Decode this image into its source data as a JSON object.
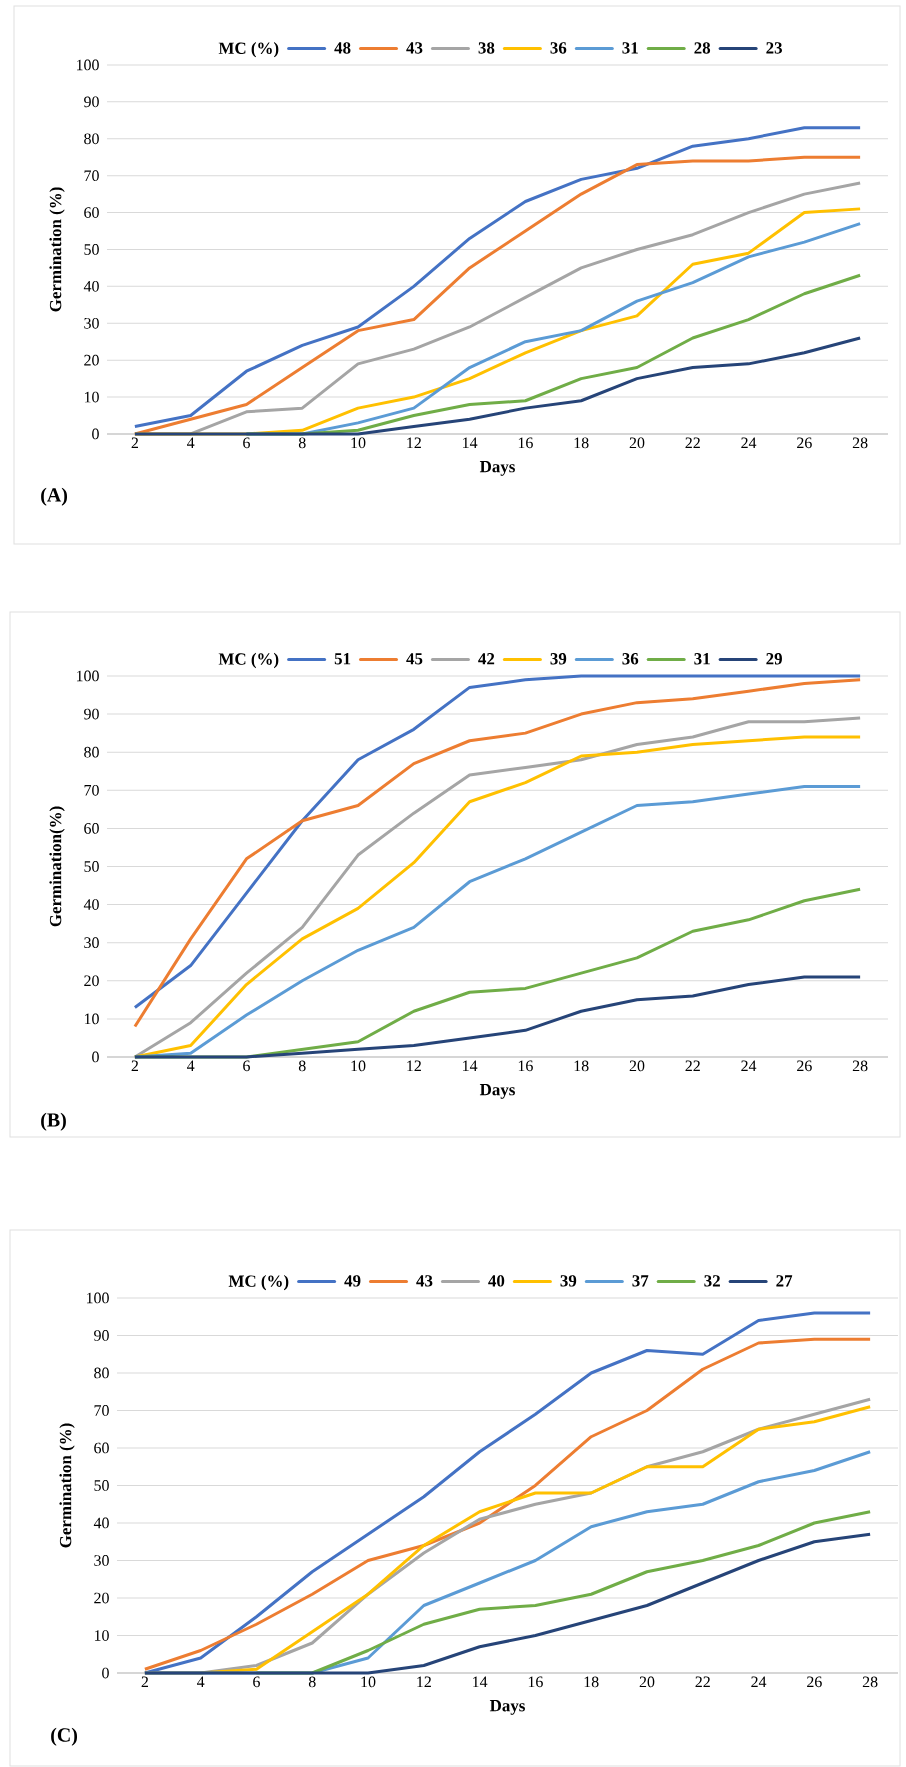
{
  "chart_data": [
    {
      "type": "line",
      "legend_title": "MC (%)",
      "xlabel": "Days",
      "ylabel": "Germination (%)",
      "annotations": [
        "(A)"
      ],
      "categories": [
        "2",
        "4",
        "6",
        "8",
        "10",
        "12",
        "14",
        "16",
        "18",
        "20",
        "22",
        "24",
        "26",
        "28"
      ],
      "ylim": [
        0,
        100
      ],
      "yticks": [
        0,
        10,
        20,
        30,
        40,
        50,
        60,
        70,
        80,
        90,
        100
      ],
      "grid": "y",
      "legend": "top",
      "marker": "none",
      "line_style": "solid",
      "series": [
        {
          "name": "48",
          "color": "#4472c4",
          "values": [
            2,
            5,
            17,
            24,
            29,
            40,
            53,
            63,
            69,
            72,
            78,
            80,
            83,
            83
          ]
        },
        {
          "name": "43",
          "color": "#ed7d31",
          "values": [
            0,
            4,
            8,
            18,
            28,
            31,
            45,
            55,
            65,
            73,
            74,
            74,
            75,
            75
          ]
        },
        {
          "name": "38",
          "color": "#a5a5a5",
          "values": [
            0,
            0,
            6,
            7,
            19,
            23,
            29,
            37,
            45,
            50,
            54,
            60,
            65,
            68
          ]
        },
        {
          "name": "36",
          "color": "#ffc000",
          "values": [
            0,
            0,
            0,
            1,
            7,
            10,
            15,
            22,
            28,
            32,
            46,
            49,
            60,
            61
          ]
        },
        {
          "name": "31",
          "color": "#5b9bd5",
          "values": [
            null,
            null,
            0,
            0,
            3,
            7,
            18,
            25,
            28,
            36,
            41,
            48,
            52,
            57
          ]
        },
        {
          "name": "28",
          "color": "#70ad47",
          "values": [
            null,
            null,
            0,
            0,
            1,
            5,
            8,
            9,
            15,
            18,
            26,
            31,
            38,
            43
          ]
        },
        {
          "name": "23",
          "color": "#264478",
          "values": [
            0,
            0,
            0,
            0,
            0,
            2,
            4,
            7,
            9,
            15,
            18,
            19,
            22,
            26
          ]
        }
      ]
    },
    {
      "type": "line",
      "legend_title": "MC (%)",
      "xlabel": "Days",
      "ylabel": "Germination(%)",
      "annotations": [
        "(B)"
      ],
      "categories": [
        "2",
        "4",
        "6",
        "8",
        "10",
        "12",
        "14",
        "16",
        "18",
        "20",
        "22",
        "24",
        "26",
        "28"
      ],
      "ylim": [
        0,
        100
      ],
      "yticks": [
        0,
        10,
        20,
        30,
        40,
        50,
        60,
        70,
        80,
        90,
        100
      ],
      "grid": "y",
      "legend": "top",
      "marker": "none",
      "line_style": "solid",
      "series": [
        {
          "name": "51",
          "color": "#4472c4",
          "values": [
            13,
            24,
            43,
            62,
            78,
            86,
            97,
            99,
            100,
            100,
            100,
            100,
            100,
            100
          ]
        },
        {
          "name": "45",
          "color": "#ed7d31",
          "values": [
            8,
            31,
            52,
            62,
            66,
            77,
            83,
            85,
            90,
            93,
            94,
            96,
            98,
            99
          ]
        },
        {
          "name": "42",
          "color": "#a5a5a5",
          "values": [
            0,
            9,
            22,
            34,
            53,
            64,
            74,
            76,
            78,
            82,
            84,
            88,
            88,
            89
          ]
        },
        {
          "name": "39",
          "color": "#ffc000",
          "values": [
            0,
            3,
            19,
            31,
            39,
            51,
            67,
            72,
            79,
            80,
            82,
            83,
            84,
            84
          ]
        },
        {
          "name": "36",
          "color": "#5b9bd5",
          "values": [
            0,
            1,
            11,
            20,
            28,
            34,
            46,
            52,
            59,
            66,
            67,
            69,
            71,
            71
          ]
        },
        {
          "name": "31",
          "color": "#70ad47",
          "values": [
            0,
            0,
            0,
            2,
            4,
            12,
            17,
            18,
            22,
            26,
            33,
            36,
            41,
            44
          ]
        },
        {
          "name": "29",
          "color": "#264478",
          "values": [
            0,
            0,
            0,
            1,
            2,
            3,
            5,
            7,
            12,
            15,
            16,
            19,
            21,
            21
          ]
        }
      ]
    },
    {
      "type": "line",
      "legend_title": "MC (%)",
      "xlabel": "Days",
      "ylabel": "Germination (%)",
      "annotations": [
        "(C)"
      ],
      "categories": [
        "2",
        "4",
        "6",
        "8",
        "10",
        "12",
        "14",
        "16",
        "18",
        "20",
        "22",
        "24",
        "26",
        "28"
      ],
      "ylim": [
        0,
        100
      ],
      "yticks": [
        0,
        10,
        20,
        30,
        40,
        50,
        60,
        70,
        80,
        90,
        100
      ],
      "grid": "y",
      "legend": "top",
      "marker": "none",
      "line_style": "solid",
      "series": [
        {
          "name": "49",
          "color": "#4472c4",
          "values": [
            0,
            4,
            15,
            27,
            37,
            47,
            59,
            69,
            80,
            86,
            85,
            94,
            96,
            96
          ]
        },
        {
          "name": "43",
          "color": "#ed7d31",
          "values": [
            1,
            6,
            13,
            21,
            30,
            34,
            40,
            50,
            63,
            70,
            81,
            88,
            89,
            89
          ]
        },
        {
          "name": "40",
          "color": "#a5a5a5",
          "values": [
            0,
            0,
            2,
            8,
            21,
            32,
            41,
            45,
            48,
            55,
            59,
            65,
            69,
            73
          ]
        },
        {
          "name": "39",
          "color": "#ffc000",
          "values": [
            0,
            0,
            1,
            11,
            21,
            34,
            43,
            48,
            48,
            55,
            55,
            65,
            67,
            71
          ]
        },
        {
          "name": "37",
          "color": "#5b9bd5",
          "values": [
            0,
            0,
            0,
            0,
            4,
            18,
            24,
            30,
            39,
            43,
            45,
            51,
            54,
            59
          ]
        },
        {
          "name": "32",
          "color": "#70ad47",
          "values": [
            null,
            null,
            0,
            0,
            6,
            13,
            17,
            18,
            21,
            27,
            30,
            34,
            40,
            43
          ]
        },
        {
          "name": "27",
          "color": "#264478",
          "values": [
            0,
            0,
            0,
            0,
            0,
            2,
            7,
            10,
            14,
            18,
            24,
            30,
            35,
            37
          ]
        }
      ]
    }
  ]
}
